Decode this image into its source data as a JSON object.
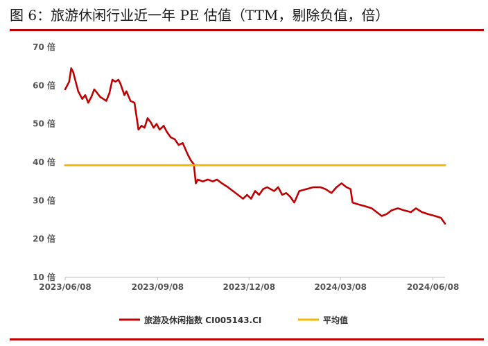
{
  "title": "图 6：旅游休闲行业近一年 PE 估值（TTM，剔除负值，倍）",
  "colors": {
    "accent": "#c00000",
    "series": "#c00000",
    "average": "#f5b800"
  },
  "chart_data": {
    "type": "line",
    "title": "",
    "xlabel": "",
    "ylabel": "",
    "ylim": [
      10,
      70
    ],
    "y_ticks": [
      "70 倍",
      "60 倍",
      "50 倍",
      "40 倍",
      "30 倍",
      "20 倍",
      "10 倍"
    ],
    "y_tick_values": [
      70,
      60,
      50,
      40,
      30,
      20,
      10
    ],
    "x_ticks": [
      "2023/06/08",
      "2023/09/08",
      "2023/12/08",
      "2024/03/08",
      "2024/06/08"
    ],
    "grid": false,
    "legend_position": "bottom",
    "series": [
      {
        "name": "旅游及休闲指数 CI005143.CI",
        "color": "#c00000",
        "points": [
          [
            "2023-06-08",
            59.0
          ],
          [
            "2023-06-12",
            61.0
          ],
          [
            "2023-06-14",
            64.5
          ],
          [
            "2023-06-16",
            63.5
          ],
          [
            "2023-06-19",
            60.5
          ],
          [
            "2023-06-21",
            58.5
          ],
          [
            "2023-06-25",
            56.5
          ],
          [
            "2023-06-28",
            57.5
          ],
          [
            "2023-07-01",
            55.5
          ],
          [
            "2023-07-04",
            57.0
          ],
          [
            "2023-07-07",
            59.0
          ],
          [
            "2023-07-10",
            58.0
          ],
          [
            "2023-07-13",
            57.0
          ],
          [
            "2023-07-16",
            56.5
          ],
          [
            "2023-07-19",
            56.0
          ],
          [
            "2023-07-22",
            58.0
          ],
          [
            "2023-07-25",
            61.5
          ],
          [
            "2023-07-28",
            61.0
          ],
          [
            "2023-07-31",
            61.5
          ],
          [
            "2023-08-02",
            60.5
          ],
          [
            "2023-08-06",
            57.5
          ],
          [
            "2023-08-08",
            58.5
          ],
          [
            "2023-08-12",
            56.0
          ],
          [
            "2023-08-16",
            55.5
          ],
          [
            "2023-08-20",
            48.5
          ],
          [
            "2023-08-23",
            49.5
          ],
          [
            "2023-08-26",
            49.0
          ],
          [
            "2023-08-29",
            51.5
          ],
          [
            "2023-09-01",
            50.5
          ],
          [
            "2023-09-04",
            49.0
          ],
          [
            "2023-09-07",
            50.0
          ],
          [
            "2023-09-10",
            48.5
          ],
          [
            "2023-09-14",
            49.5
          ],
          [
            "2023-09-17",
            48.0
          ],
          [
            "2023-09-21",
            46.5
          ],
          [
            "2023-09-25",
            46.0
          ],
          [
            "2023-09-29",
            44.5
          ],
          [
            "2023-10-03",
            45.0
          ],
          [
            "2023-10-08",
            42.0
          ],
          [
            "2023-10-11",
            40.5
          ],
          [
            "2023-10-14",
            39.5
          ],
          [
            "2023-10-16",
            34.5
          ],
          [
            "2023-10-18",
            35.5
          ],
          [
            "2023-10-23",
            35.0
          ],
          [
            "2023-10-28",
            35.5
          ],
          [
            "2023-11-02",
            35.0
          ],
          [
            "2023-11-06",
            35.5
          ],
          [
            "2023-11-11",
            34.5
          ],
          [
            "2023-11-17",
            33.5
          ],
          [
            "2023-11-22",
            32.5
          ],
          [
            "2023-11-27",
            31.5
          ],
          [
            "2023-12-02",
            30.5
          ],
          [
            "2023-12-06",
            31.5
          ],
          [
            "2023-12-10",
            30.5
          ],
          [
            "2023-12-14",
            32.5
          ],
          [
            "2023-12-18",
            31.5
          ],
          [
            "2023-12-22",
            33.0
          ],
          [
            "2023-12-26",
            33.5
          ],
          [
            "2024-01-02",
            32.5
          ],
          [
            "2024-01-06",
            33.5
          ],
          [
            "2024-01-10",
            31.5
          ],
          [
            "2024-01-14",
            32.0
          ],
          [
            "2024-01-18",
            31.0
          ],
          [
            "2024-01-22",
            29.5
          ],
          [
            "2024-01-27",
            32.5
          ],
          [
            "2024-02-03",
            33.0
          ],
          [
            "2024-02-10",
            33.5
          ],
          [
            "2024-02-17",
            33.5
          ],
          [
            "2024-02-22",
            33.0
          ],
          [
            "2024-02-28",
            32.0
          ],
          [
            "2024-03-04",
            33.5
          ],
          [
            "2024-03-09",
            34.5
          ],
          [
            "2024-03-14",
            33.5
          ],
          [
            "2024-03-18",
            33.0
          ],
          [
            "2024-03-20",
            29.5
          ],
          [
            "2024-03-26",
            29.0
          ],
          [
            "2024-04-02",
            28.5
          ],
          [
            "2024-04-08",
            28.0
          ],
          [
            "2024-04-13",
            27.0
          ],
          [
            "2024-04-18",
            26.0
          ],
          [
            "2024-04-23",
            26.5
          ],
          [
            "2024-04-28",
            27.5
          ],
          [
            "2024-05-04",
            28.0
          ],
          [
            "2024-05-10",
            27.5
          ],
          [
            "2024-05-17",
            27.0
          ],
          [
            "2024-05-22",
            28.0
          ],
          [
            "2024-05-28",
            27.0
          ],
          [
            "2024-06-03",
            26.5
          ],
          [
            "2024-06-10",
            26.0
          ],
          [
            "2024-06-16",
            25.5
          ],
          [
            "2024-06-20",
            24.0
          ]
        ]
      },
      {
        "name": "平均值",
        "color": "#f5b800",
        "points": [
          [
            "2023-06-08",
            39.2
          ],
          [
            "2024-06-20",
            39.2
          ]
        ]
      }
    ]
  }
}
